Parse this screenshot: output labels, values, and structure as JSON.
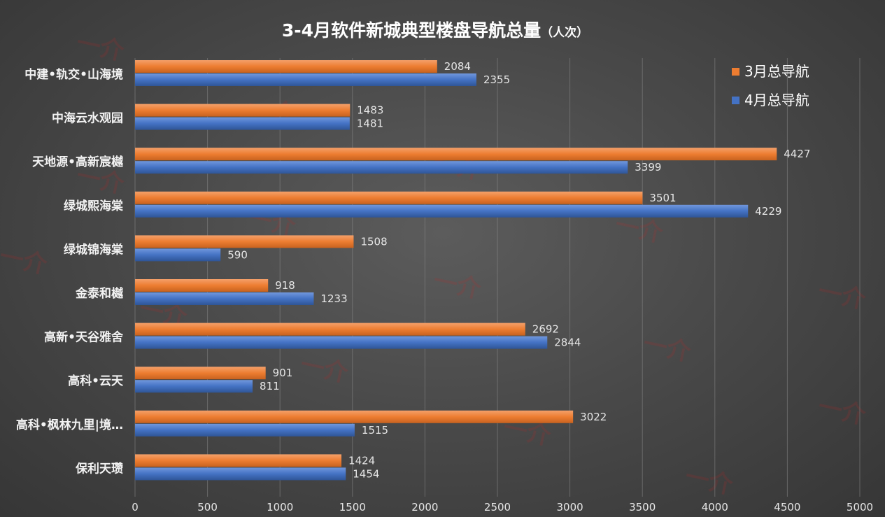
{
  "watermark_text": "一介",
  "colors": {
    "series1": "#ED7D31",
    "series2": "#4472C4",
    "grid": "#8a8a8a",
    "label": "#e6e6e6",
    "category": "#f2f2f2"
  },
  "chart_data": {
    "type": "bar",
    "orientation": "horizontal",
    "title": "3-4月软件新城典型楼盘导航总量",
    "title_suffix": "（人次）",
    "categories": [
      "中建•轨交•山海境",
      "中海云水观园",
      "天地源•高新宸樾",
      "绿城熙海棠",
      "绿城锦海棠",
      "金泰和樾",
      "高新•天谷雅舍",
      "高科•云天",
      "高科•枫林九里|境…",
      "保利天瓒"
    ],
    "series": [
      {
        "name": "3月总导航",
        "color": "#ED7D31",
        "values": [
          2084,
          1483,
          4427,
          3501,
          1508,
          918,
          2692,
          901,
          3022,
          1424
        ]
      },
      {
        "name": "4月总导航",
        "color": "#4472C4",
        "values": [
          2355,
          1481,
          3399,
          4229,
          590,
          1233,
          2844,
          811,
          1515,
          1454
        ]
      }
    ],
    "xlim": [
      0,
      5000
    ],
    "xticks": [
      0,
      500,
      1000,
      1500,
      2000,
      2500,
      3000,
      3500,
      4000,
      4500,
      5000
    ],
    "grid": "vertical",
    "legend_position": "top-right",
    "data_labels": true
  }
}
